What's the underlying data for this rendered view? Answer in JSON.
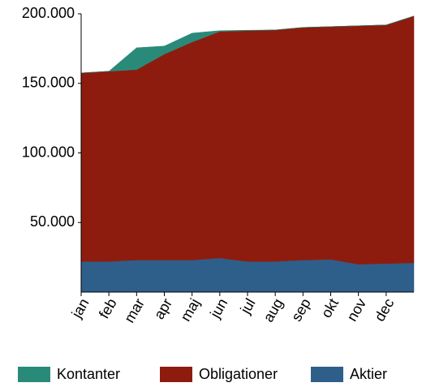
{
  "chart_data": {
    "type": "stacked_area",
    "categories": [
      "jan",
      "feb",
      "mar",
      "apr",
      "maj",
      "jun",
      "jul",
      "aug",
      "sep",
      "okt",
      "nov",
      "dec",
      null
    ],
    "series": [
      {
        "name": "Aktier",
        "color": "#2e5f8a",
        "values": [
          22000,
          22000,
          23000,
          23000,
          23000,
          24500,
          22000,
          22000,
          23000,
          23500,
          20000,
          20500,
          21000
        ]
      },
      {
        "name": "Obligationer",
        "color": "#8e1c0e",
        "values": [
          135500,
          136700,
          136900,
          148000,
          156700,
          162800,
          165900,
          166400,
          167200,
          167300,
          171400,
          171500,
          177400
        ]
      },
      {
        "name": "Kontanter",
        "color": "#2a8a7a",
        "values": [
          0,
          0,
          15700,
          5800,
          6400,
          600,
          300,
          0,
          0,
          0,
          0,
          0,
          0
        ]
      }
    ],
    "ylim": [
      0,
      200000
    ],
    "yticks": [
      {
        "value": 50000,
        "label": "50.000"
      },
      {
        "value": 100000,
        "label": "100.000"
      },
      {
        "value": 150000,
        "label": "150.000"
      },
      {
        "value": 200000,
        "label": "200.000"
      }
    ],
    "legend": "bottom"
  }
}
